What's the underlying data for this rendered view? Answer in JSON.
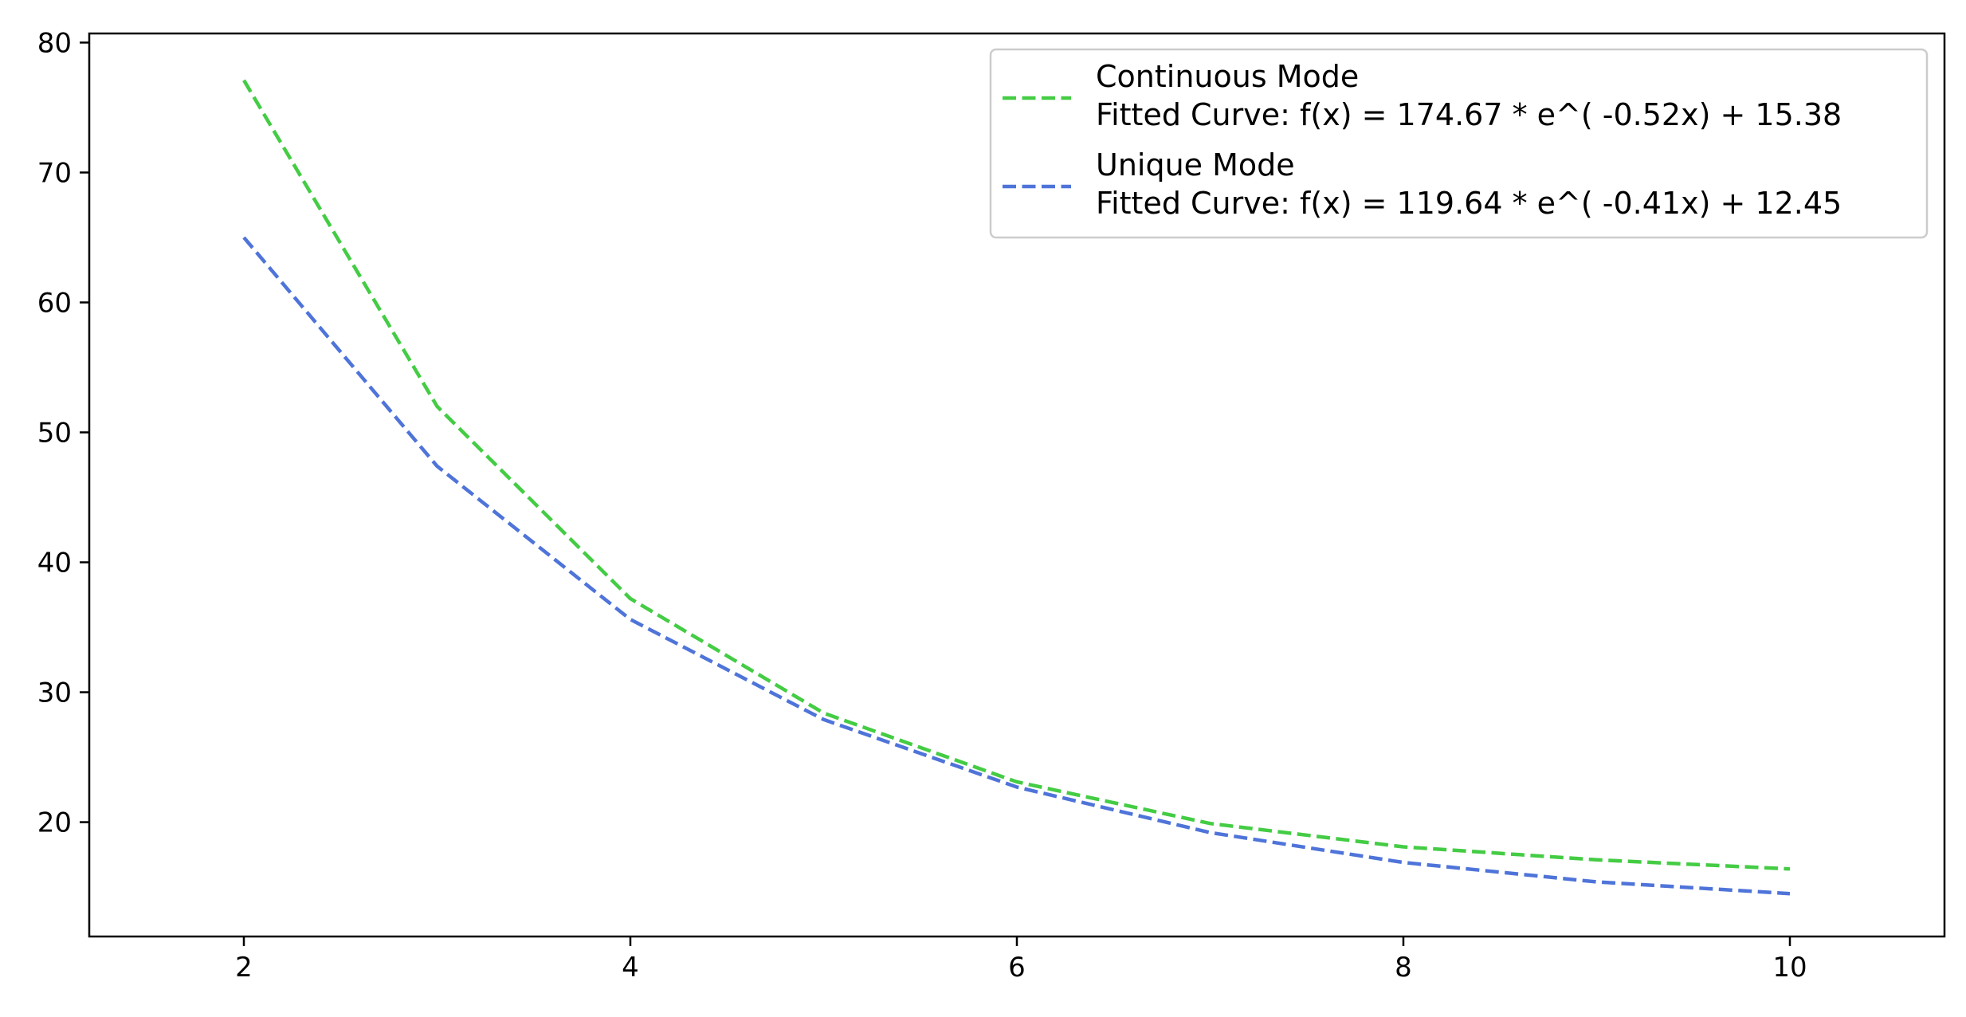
{
  "chart_data": {
    "type": "line",
    "title": "",
    "xlabel": "",
    "ylabel": "",
    "xlim": [
      1.2,
      10.8
    ],
    "ylim": [
      11.2,
      80.7
    ],
    "x_ticks": [
      2,
      4,
      6,
      8,
      10
    ],
    "y_ticks": [
      20,
      30,
      40,
      50,
      60,
      70,
      80
    ],
    "grid": false,
    "legend_position": "top-right",
    "x": [
      2,
      3,
      4,
      5,
      6,
      7,
      8,
      9,
      10
    ],
    "series": [
      {
        "name": "Continuous Mode\nFitted Curve: f(x) = 174.67 * e^( -0.52x) + 15.38",
        "legend_lines": [
          "Continuous Mode",
          "Fitted Curve: f(x) = 174.67 * e^( -0.52x) + 15.38"
        ],
        "color": "#44cc44",
        "line_style": "dashed",
        "values": [
          77.1,
          52.0,
          37.2,
          28.4,
          23.1,
          19.9,
          18.1,
          17.1,
          16.4
        ]
      },
      {
        "name": "Unique Mode\nFitted Curve: f(x) = 119.64 * e^( -0.41x) + 12.45",
        "legend_lines": [
          "Unique Mode",
          "Fitted Curve: f(x) = 119.64 * e^( -0.41x) + 12.45"
        ],
        "color": "#4f74d9",
        "line_style": "dashed",
        "values": [
          65.0,
          47.4,
          35.6,
          27.9,
          22.7,
          19.2,
          16.9,
          15.4,
          14.5
        ]
      }
    ]
  }
}
